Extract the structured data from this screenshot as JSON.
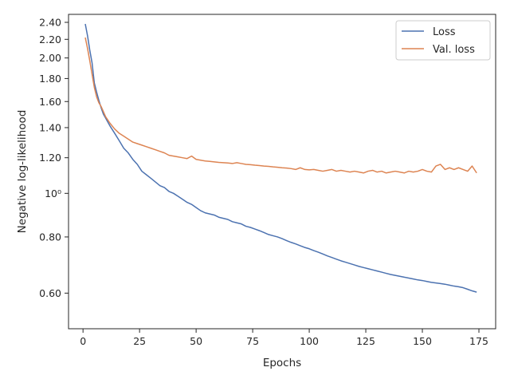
{
  "chart_data": {
    "type": "line",
    "title": "",
    "xlabel": "Epochs",
    "ylabel": "Negative log-likelihood",
    "y_scale": "log",
    "xlim": [
      -6.4,
      182.4
    ],
    "ylim": [
      0.5,
      2.5
    ],
    "x_ticks": [
      {
        "value": 0,
        "label": "0"
      },
      {
        "value": 25,
        "label": "25"
      },
      {
        "value": 50,
        "label": "50"
      },
      {
        "value": 75,
        "label": "75"
      },
      {
        "value": 100,
        "label": "100"
      },
      {
        "value": 125,
        "label": "125"
      },
      {
        "value": 150,
        "label": "150"
      },
      {
        "value": 175,
        "label": "175"
      }
    ],
    "y_ticks": [
      {
        "value": 0.6,
        "label": "0.60"
      },
      {
        "value": 0.8,
        "label": "0.80"
      },
      {
        "value": 1.0,
        "label": "10⁰"
      },
      {
        "value": 1.2,
        "label": "1.20"
      },
      {
        "value": 1.4,
        "label": "1.40"
      },
      {
        "value": 1.6,
        "label": "1.60"
      },
      {
        "value": 1.8,
        "label": "1.80"
      },
      {
        "value": 2.0,
        "label": "2.00"
      },
      {
        "value": 2.2,
        "label": "2.20"
      },
      {
        "value": 2.4,
        "label": "2.40"
      }
    ],
    "grid": false,
    "legend_position": "top-right",
    "series": [
      {
        "name": "Loss",
        "color": "#4c72b0",
        "points": [
          [
            1,
            2.38
          ],
          [
            2,
            2.24
          ],
          [
            3,
            2.08
          ],
          [
            4,
            1.95
          ],
          [
            5,
            1.76
          ],
          [
            6,
            1.68
          ],
          [
            7,
            1.61
          ],
          [
            8,
            1.55
          ],
          [
            9,
            1.5
          ],
          [
            10,
            1.47
          ],
          [
            12,
            1.41
          ],
          [
            14,
            1.36
          ],
          [
            16,
            1.31
          ],
          [
            18,
            1.26
          ],
          [
            20,
            1.23
          ],
          [
            22,
            1.19
          ],
          [
            24,
            1.16
          ],
          [
            26,
            1.12
          ],
          [
            28,
            1.1
          ],
          [
            30,
            1.08
          ],
          [
            32,
            1.06
          ],
          [
            34,
            1.04
          ],
          [
            36,
            1.03
          ],
          [
            38,
            1.01
          ],
          [
            40,
            1.0
          ],
          [
            42,
            0.985
          ],
          [
            44,
            0.97
          ],
          [
            46,
            0.955
          ],
          [
            48,
            0.945
          ],
          [
            50,
            0.93
          ],
          [
            52,
            0.915
          ],
          [
            54,
            0.905
          ],
          [
            56,
            0.9
          ],
          [
            58,
            0.895
          ],
          [
            60,
            0.885
          ],
          [
            62,
            0.88
          ],
          [
            64,
            0.875
          ],
          [
            66,
            0.865
          ],
          [
            68,
            0.86
          ],
          [
            70,
            0.855
          ],
          [
            72,
            0.845
          ],
          [
            74,
            0.84
          ],
          [
            76,
            0.833
          ],
          [
            78,
            0.826
          ],
          [
            80,
            0.818
          ],
          [
            82,
            0.81
          ],
          [
            84,
            0.805
          ],
          [
            86,
            0.8
          ],
          [
            88,
            0.793
          ],
          [
            90,
            0.785
          ],
          [
            92,
            0.778
          ],
          [
            94,
            0.772
          ],
          [
            96,
            0.765
          ],
          [
            98,
            0.758
          ],
          [
            100,
            0.753
          ],
          [
            102,
            0.746
          ],
          [
            104,
            0.74
          ],
          [
            106,
            0.733
          ],
          [
            108,
            0.726
          ],
          [
            110,
            0.72
          ],
          [
            112,
            0.714
          ],
          [
            114,
            0.708
          ],
          [
            116,
            0.703
          ],
          [
            118,
            0.698
          ],
          [
            120,
            0.693
          ],
          [
            122,
            0.688
          ],
          [
            124,
            0.684
          ],
          [
            126,
            0.68
          ],
          [
            128,
            0.676
          ],
          [
            130,
            0.672
          ],
          [
            132,
            0.668
          ],
          [
            134,
            0.664
          ],
          [
            136,
            0.66
          ],
          [
            138,
            0.657
          ],
          [
            140,
            0.654
          ],
          [
            142,
            0.651
          ],
          [
            144,
            0.648
          ],
          [
            146,
            0.645
          ],
          [
            148,
            0.642
          ],
          [
            150,
            0.64
          ],
          [
            152,
            0.637
          ],
          [
            154,
            0.634
          ],
          [
            156,
            0.632
          ],
          [
            158,
            0.63
          ],
          [
            160,
            0.628
          ],
          [
            162,
            0.625
          ],
          [
            164,
            0.622
          ],
          [
            166,
            0.62
          ],
          [
            168,
            0.617
          ],
          [
            170,
            0.612
          ],
          [
            172,
            0.607
          ],
          [
            174,
            0.603
          ]
        ]
      },
      {
        "name": "Val. loss",
        "color": "#dd8452",
        "points": [
          [
            1,
            2.22
          ],
          [
            2,
            2.1
          ],
          [
            3,
            1.97
          ],
          [
            4,
            1.84
          ],
          [
            5,
            1.72
          ],
          [
            6,
            1.64
          ],
          [
            7,
            1.59
          ],
          [
            8,
            1.56
          ],
          [
            9,
            1.52
          ],
          [
            10,
            1.48
          ],
          [
            12,
            1.43
          ],
          [
            14,
            1.39
          ],
          [
            16,
            1.36
          ],
          [
            18,
            1.34
          ],
          [
            20,
            1.32
          ],
          [
            22,
            1.3
          ],
          [
            24,
            1.29
          ],
          [
            26,
            1.28
          ],
          [
            28,
            1.27
          ],
          [
            30,
            1.26
          ],
          [
            32,
            1.25
          ],
          [
            34,
            1.24
          ],
          [
            36,
            1.23
          ],
          [
            38,
            1.215
          ],
          [
            40,
            1.21
          ],
          [
            42,
            1.205
          ],
          [
            44,
            1.2
          ],
          [
            46,
            1.195
          ],
          [
            48,
            1.21
          ],
          [
            50,
            1.19
          ],
          [
            52,
            1.185
          ],
          [
            54,
            1.18
          ],
          [
            56,
            1.178
          ],
          [
            58,
            1.175
          ],
          [
            60,
            1.172
          ],
          [
            62,
            1.17
          ],
          [
            64,
            1.168
          ],
          [
            66,
            1.165
          ],
          [
            68,
            1.17
          ],
          [
            70,
            1.165
          ],
          [
            72,
            1.16
          ],
          [
            74,
            1.158
          ],
          [
            76,
            1.155
          ],
          [
            78,
            1.153
          ],
          [
            80,
            1.15
          ],
          [
            82,
            1.148
          ],
          [
            84,
            1.145
          ],
          [
            86,
            1.143
          ],
          [
            88,
            1.14
          ],
          [
            90,
            1.138
          ],
          [
            92,
            1.135
          ],
          [
            94,
            1.13
          ],
          [
            96,
            1.14
          ],
          [
            98,
            1.13
          ],
          [
            100,
            1.128
          ],
          [
            102,
            1.13
          ],
          [
            104,
            1.125
          ],
          [
            106,
            1.12
          ],
          [
            108,
            1.125
          ],
          [
            110,
            1.13
          ],
          [
            112,
            1.12
          ],
          [
            114,
            1.125
          ],
          [
            116,
            1.12
          ],
          [
            118,
            1.115
          ],
          [
            120,
            1.12
          ],
          [
            122,
            1.115
          ],
          [
            124,
            1.11
          ],
          [
            126,
            1.12
          ],
          [
            128,
            1.125
          ],
          [
            130,
            1.115
          ],
          [
            132,
            1.12
          ],
          [
            134,
            1.11
          ],
          [
            136,
            1.115
          ],
          [
            138,
            1.12
          ],
          [
            140,
            1.115
          ],
          [
            142,
            1.11
          ],
          [
            144,
            1.12
          ],
          [
            146,
            1.115
          ],
          [
            148,
            1.12
          ],
          [
            150,
            1.13
          ],
          [
            152,
            1.12
          ],
          [
            154,
            1.115
          ],
          [
            156,
            1.15
          ],
          [
            158,
            1.16
          ],
          [
            160,
            1.13
          ],
          [
            162,
            1.14
          ],
          [
            164,
            1.13
          ],
          [
            166,
            1.14
          ],
          [
            168,
            1.13
          ],
          [
            170,
            1.12
          ],
          [
            172,
            1.15
          ],
          [
            174,
            1.11
          ]
        ]
      }
    ]
  }
}
